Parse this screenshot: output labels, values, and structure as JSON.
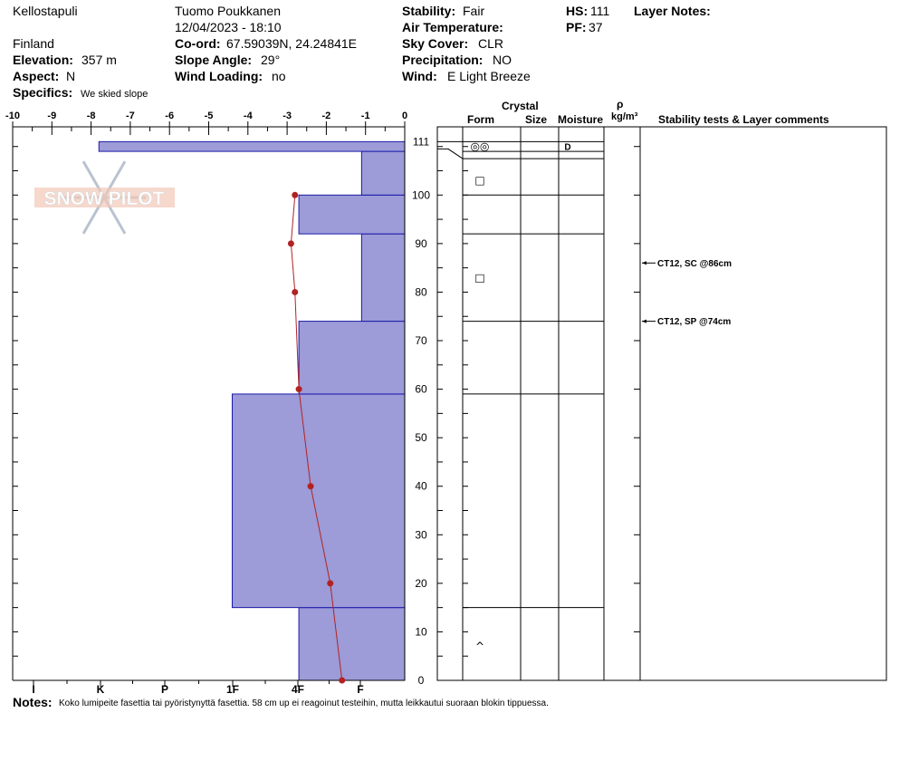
{
  "header": {
    "location": "Kellostapuli",
    "country": "Finland",
    "observer": "Tuomo Poukkanen",
    "datetime": "12/04/2023 - 18:10",
    "elevation_label": "Elevation:",
    "elevation": "357 m",
    "aspect_label": "Aspect:",
    "aspect": "N",
    "specifics_label": "Specifics:",
    "specifics": "We skied slope",
    "coord_label": "Co-ord:",
    "coord": "67.59039N, 24.24841E",
    "slope_label": "Slope Angle:",
    "slope": "29°",
    "wind_loading_label": "Wind Loading:",
    "wind_loading": "no",
    "stability_label": "Stability:",
    "stability": "Fair",
    "air_temp_label": "Air Temperature:",
    "air_temp": "",
    "sky_label": "Sky Cover:",
    "sky": "CLR",
    "precip_label": "Precipitation:",
    "precip": "NO",
    "wind_label": "Wind:",
    "wind": "E Light Breeze",
    "hs_label": "HS:",
    "hs": "111",
    "pf_label": "PF:",
    "pf": "37",
    "layer_notes_label": "Layer Notes:"
  },
  "watermark": "SNOW PILOT",
  "columns": {
    "crystal": "Crystal",
    "form": "Form",
    "size": "Size",
    "moisture": "Moisture",
    "rho": "ρ",
    "density_unit": "kg/m³",
    "stability": "Stability tests & Layer comments"
  },
  "notes_label": "Notes:",
  "notes": "Koko lumipeite fasettia tai pyöristynyttä fasettia. 58 cm up ei reagoinut testeihin, mutta leikkautui suoraan blokin tippuessa.",
  "chart_data": {
    "type": "snow_profile",
    "temperature_axis": {
      "ticks": [
        -10,
        -9,
        -8,
        -7,
        -6,
        -5,
        -4,
        -3,
        -2,
        -1,
        0
      ],
      "range": [
        -10,
        0
      ]
    },
    "hardness_axis": {
      "labels": [
        "I",
        "K",
        "P",
        "1F",
        "4F",
        "F"
      ]
    },
    "height_axis": {
      "range": [
        0,
        114
      ],
      "ticks": [
        0,
        10,
        20,
        30,
        40,
        50,
        60,
        70,
        80,
        90,
        100,
        111
      ]
    },
    "hardness_profile": [
      {
        "bottom": 0,
        "top": 15,
        "temp_extent": -2.7
      },
      {
        "bottom": 15,
        "top": 59,
        "temp_extent": -4.4
      },
      {
        "bottom": 59,
        "top": 74,
        "temp_extent": -2.7
      },
      {
        "bottom": 74,
        "top": 92,
        "temp_extent": -1.1
      },
      {
        "bottom": 92,
        "top": 100,
        "temp_extent": -2.7
      },
      {
        "bottom": 100,
        "top": 109,
        "temp_extent": -1.1
      },
      {
        "bottom": 109,
        "top": 111,
        "temp_extent": -7.8
      }
    ],
    "temperature_profile": [
      {
        "depth": 0,
        "temp": -1.6
      },
      {
        "depth": 20,
        "temp": -1.9
      },
      {
        "depth": 40,
        "temp": -2.4
      },
      {
        "depth": 60,
        "temp": -2.7
      },
      {
        "depth": 80,
        "temp": -2.8
      },
      {
        "depth": 90,
        "temp": -2.9
      },
      {
        "depth": 100,
        "temp": -2.8
      }
    ],
    "layer_boundaries": [
      15,
      59,
      74,
      92,
      100,
      109,
      111
    ],
    "crystal_forms": [
      {
        "depth": 110,
        "symbol": "◎◎"
      },
      {
        "depth": 103,
        "symbol": "□"
      },
      {
        "depth": 83,
        "symbol": "□"
      },
      {
        "depth": 7,
        "symbol": "^"
      }
    ],
    "moisture": [
      {
        "depth": 110,
        "value": "D"
      }
    ],
    "stability_tests": [
      {
        "depth": 86,
        "label": "CT12, SC @86cm"
      },
      {
        "depth": 74,
        "label": "CT12, SP @74cm"
      }
    ]
  }
}
